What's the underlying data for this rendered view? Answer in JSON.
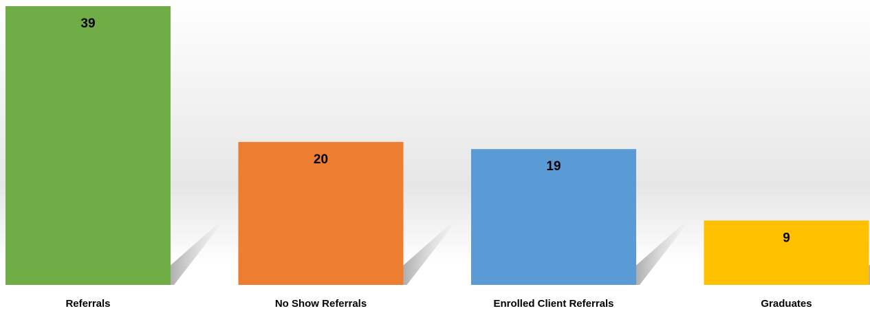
{
  "chart_data": {
    "type": "bar",
    "categories": [
      "Referrals",
      "No Show Referrals",
      "Enrolled Client Referrals",
      "Graduates"
    ],
    "values": [
      39,
      20,
      19,
      9
    ],
    "colors": [
      "#70ad47",
      "#ed7d31",
      "#5b9bd5",
      "#ffc000"
    ]
  }
}
